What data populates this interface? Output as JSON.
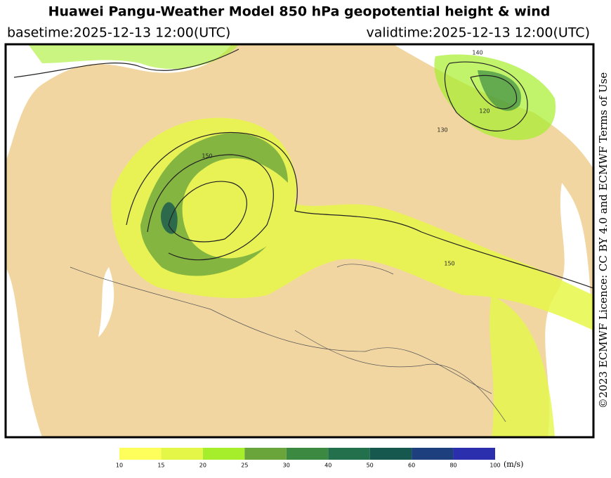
{
  "header": {
    "title": "Huawei Pangu-Weather Model 850 hPa geopotential height & wind",
    "basetime": "basetime:2025-12-13 12:00(UTC)",
    "validtime": "validtime:2025-12-13 12:00(UTC)"
  },
  "licence": "©2023 ECMWF Licence: CC BY 4.0 and ECMWF Terms of Use",
  "map": {
    "contour_labels": [
      "150",
      "140",
      "120",
      "130",
      "150"
    ]
  },
  "colorbar": {
    "levels": [
      10,
      15,
      20,
      25,
      30,
      40,
      50,
      60,
      80,
      100
    ],
    "colors": [
      "#ffff5c",
      "#e4f748",
      "#a6ee2c",
      "#6aa53c",
      "#3c8a42",
      "#22704c",
      "#16584e",
      "#1d3f7e",
      "#2b2fae"
    ],
    "unit": "(m/s)"
  }
}
